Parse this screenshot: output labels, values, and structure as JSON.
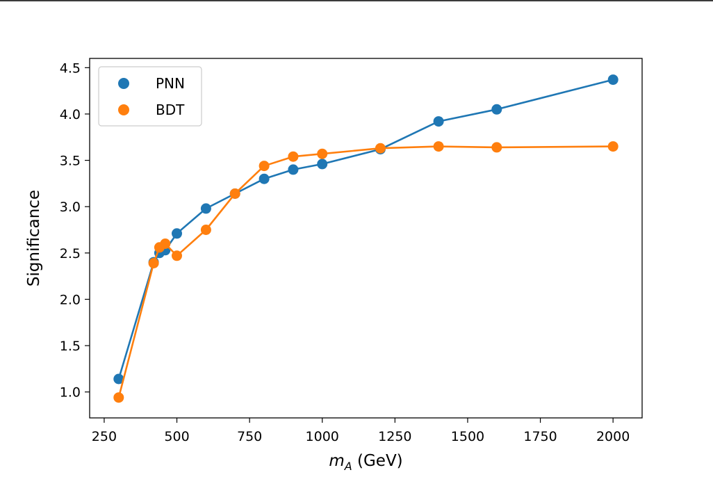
{
  "chart_data": {
    "type": "line",
    "xlabel_symbol": "m",
    "xlabel_subscript": "A",
    "xlabel_unit": " (GeV)",
    "ylabel": "Significance",
    "xlim": [
      200,
      2100
    ],
    "ylim": [
      0.72,
      4.6
    ],
    "xticks": [
      250,
      500,
      750,
      1000,
      1250,
      1500,
      1750,
      2000
    ],
    "yticks": [
      1.0,
      1.5,
      2.0,
      2.5,
      3.0,
      3.5,
      4.0,
      4.5
    ],
    "grid": false,
    "legend_position": "top-left",
    "series": [
      {
        "name": "PNN",
        "color": "#1f77b4",
        "x": [
          300,
          420,
          440,
          460,
          500,
          600,
          700,
          800,
          900,
          1000,
          1200,
          1400,
          1600,
          2000
        ],
        "y": [
          1.14,
          2.4,
          2.5,
          2.53,
          2.71,
          2.98,
          3.14,
          3.3,
          3.4,
          3.46,
          3.62,
          3.92,
          4.05,
          4.37
        ]
      },
      {
        "name": "BDT",
        "color": "#ff7f0e",
        "x": [
          300,
          420,
          440,
          460,
          500,
          600,
          700,
          800,
          900,
          1000,
          1200,
          1400,
          1600,
          2000
        ],
        "y": [
          0.94,
          2.39,
          2.56,
          2.6,
          2.47,
          2.75,
          3.14,
          3.44,
          3.54,
          3.57,
          3.63,
          3.65,
          3.64,
          3.65
        ]
      }
    ]
  }
}
